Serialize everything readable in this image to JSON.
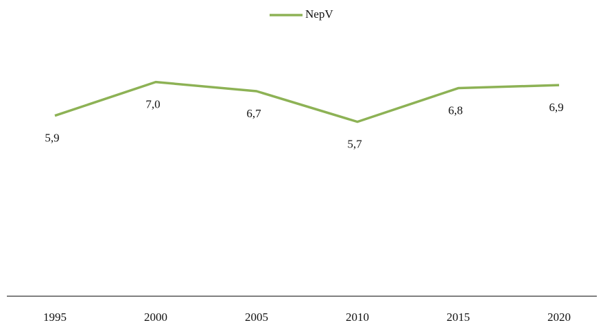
{
  "chart_data": {
    "type": "line",
    "categories": [
      "1995",
      "2000",
      "2005",
      "2010",
      "2015",
      "2020"
    ],
    "series": [
      {
        "name": "NepV",
        "color": "#8db255",
        "values": [
          5.9,
          7.0,
          6.7,
          5.7,
          6.8,
          6.9
        ],
        "value_labels": [
          "5,9",
          "7,0",
          "6,7",
          "5,7",
          "6,8",
          "6,9"
        ]
      }
    ],
    "ylim": [
      0,
      8
    ],
    "legend": "top"
  }
}
